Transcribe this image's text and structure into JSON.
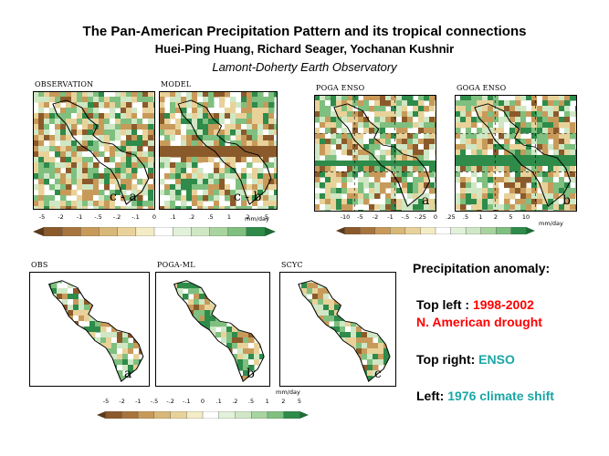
{
  "header": {
    "title": "The Pan-American Precipitation Pattern and its tropical connections",
    "authors": "Huei-Ping Huang, Richard Seager, Yochanan Kushnir",
    "institution": "Lamont-Doherty Earth Observatory"
  },
  "top_left": {
    "panels": [
      {
        "label": "OBSERVATION",
        "letter": "c - a"
      },
      {
        "label": "MODEL",
        "letter": "c - b"
      }
    ],
    "colorbar": {
      "unit": "mm/day",
      "ticks": [
        "-5",
        "-2",
        "-1",
        "-.5",
        "-.2",
        "-.1",
        "0",
        ".1",
        ".2",
        ".5",
        "1",
        "2",
        "5"
      ]
    }
  },
  "top_right": {
    "panels": [
      {
        "label": "POGA ENSO",
        "letter": "a"
      },
      {
        "label": "GOGA ENSO",
        "letter": "b"
      }
    ],
    "colorbar": {
      "unit": "mm/day",
      "ticks": [
        "-10",
        "-5",
        "-2",
        "-1",
        "-.5",
        "-.25",
        "0",
        ".25",
        ".5",
        "1",
        "2",
        "5",
        "10"
      ]
    }
  },
  "bottom": {
    "panels": [
      {
        "label": "OBS",
        "letter": "a"
      },
      {
        "label": "POGA-ML",
        "letter": "b"
      },
      {
        "label": "SCYC",
        "letter": "c"
      }
    ],
    "colorbar": {
      "unit": "mm/day",
      "ticks": [
        "-5",
        "-2",
        "-1",
        "-.5",
        "-.2",
        "-.1",
        "0",
        ".1",
        ".2",
        ".5",
        "1",
        "2",
        "5"
      ]
    }
  },
  "legend": {
    "heading": "Precipitation anomaly:",
    "topleft_prefix": "Top left : ",
    "topleft_years": "1998-2002",
    "topleft_event": "N. American drought",
    "topright_prefix": "Top right: ",
    "topright_value": "ENSO",
    "left_prefix": "Left: ",
    "left_value": "1976 climate shift"
  },
  "colors": {
    "dry_dark": "#8b5a2b",
    "dry_mid": "#c89a5a",
    "dry_light": "#e8d29a",
    "neutral": "#ffffff",
    "wet_light": "#cfe7c4",
    "wet_mid": "#7fbf7f",
    "wet_dark": "#2e8b4a",
    "highlight_red": "#ff0000",
    "highlight_teal": "#1aa6a6"
  }
}
